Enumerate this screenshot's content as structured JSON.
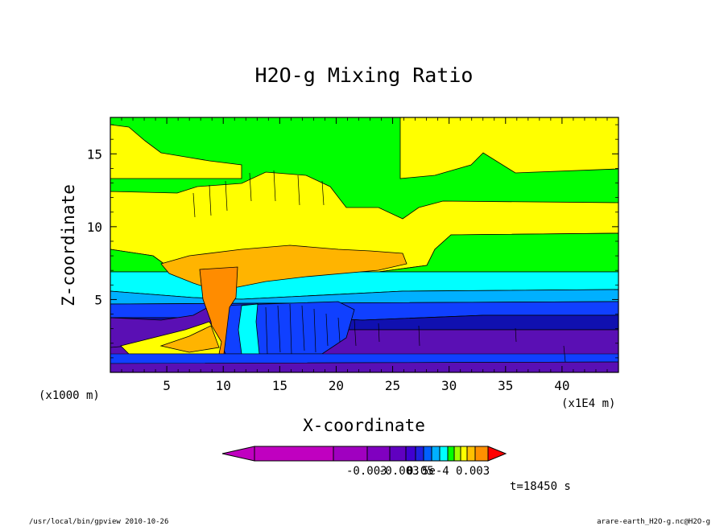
{
  "chart_data": {
    "type": "heatmap",
    "title": "H2O-g Mixing Ratio",
    "xlabel": "X-coordinate",
    "ylabel": "Z-coordinate",
    "x_unit_left": "(x1000 m)",
    "x_unit_right": "(x1E4 m)",
    "xlim": [
      0,
      45
    ],
    "ylim": [
      0,
      17.5
    ],
    "x_ticks": [
      "5",
      "10",
      "15",
      "20",
      "25",
      "30",
      "35",
      "40"
    ],
    "y_ticks": [
      "5",
      "10",
      "15"
    ],
    "x_tick_values": [
      5,
      10,
      15,
      20,
      25,
      30,
      35,
      40
    ],
    "y_tick_values": [
      5,
      10,
      15
    ],
    "colorbar_labels": [
      "-0.003",
      "-0.003",
      "0.05",
      "5e-4",
      "0.003"
    ],
    "colorbar_colors": [
      "#c000c0",
      "#a000c0",
      "#8000c0",
      "#6000c0",
      "#4000d0",
      "#2020e0",
      "#0060ff",
      "#00b0ff",
      "#00ffff",
      "#00ff00",
      "#a0ff00",
      "#ffff00",
      "#ffc000",
      "#ff9000",
      "#ff0000"
    ],
    "time_label": "t=18450 s",
    "palette": {
      "purple": "#5a0fb4",
      "dark_blue": "#1010b0",
      "blue": "#1040ff",
      "light_blue": "#00b0ff",
      "cyan": "#00ffff",
      "green": "#00ff00",
      "yellow": "#ffff00",
      "orange": "#ffb400",
      "dark_orange": "#ff8c00"
    }
  },
  "footer": {
    "left": "/usr/local/bin/gpview  2010-10-26",
    "right": "arare-earth_H2O-g.nc@H2O-g"
  }
}
